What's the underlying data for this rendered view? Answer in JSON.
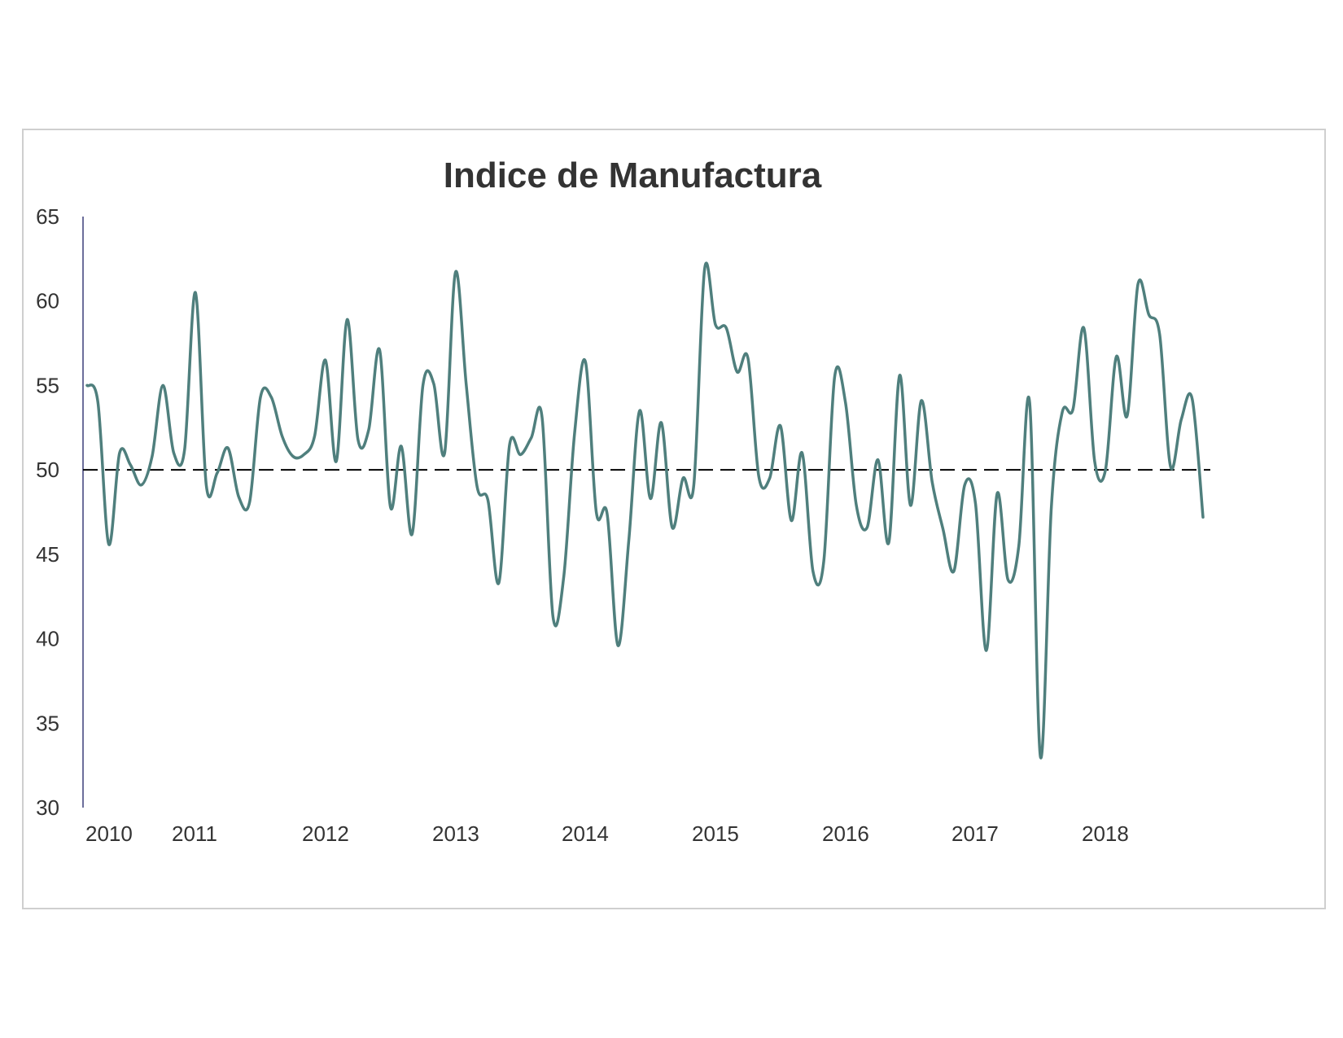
{
  "chart_data": {
    "type": "line",
    "title": "Indice de Manufactura",
    "xlabel": "",
    "ylabel": "",
    "ylim": [
      30,
      65
    ],
    "y_ticks": [
      30,
      35,
      40,
      45,
      50,
      55,
      60,
      65
    ],
    "x_tick_labels": [
      "2010",
      "2011",
      "2012",
      "2013",
      "2014",
      "2015",
      "2016",
      "2017",
      "2018"
    ],
    "reference_line": {
      "value": 50,
      "style": "dashed",
      "color": "#000000"
    },
    "line_color": "#4f7f7d",
    "grid": false,
    "legend": "none",
    "series": [
      {
        "values": [
          55.0,
          54.0,
          45.6,
          51.0,
          50.3,
          49.1,
          50.8,
          55.0,
          51.0,
          51.2,
          60.5,
          49.1,
          49.8,
          51.3,
          48.4,
          48.1,
          54.3,
          54.3,
          52.0,
          50.8,
          50.9,
          52.0,
          56.5,
          50.5,
          58.9,
          51.8,
          52.4,
          57.1,
          47.8,
          51.4,
          46.2,
          55.0,
          55.1,
          51.0,
          61.7,
          55.0,
          49.0,
          48.2,
          43.3,
          51.5,
          50.9,
          51.9,
          53.1,
          41.3,
          43.7,
          52.2,
          56.4,
          47.5,
          47.4,
          39.6,
          45.8,
          53.5,
          48.3,
          52.8,
          46.6,
          49.5,
          49.1,
          61.9,
          58.6,
          58.4,
          55.8,
          56.6,
          49.6,
          49.5,
          52.6,
          47.0,
          51.0,
          44.0,
          44.6,
          55.5,
          54.0,
          47.9,
          46.6,
          50.6,
          45.7,
          55.6,
          47.9,
          54.1,
          49.3,
          46.5,
          44.0,
          49.1,
          48.0,
          39.3,
          48.6,
          43.5,
          45.5,
          54.0,
          33.0,
          47.8,
          53.4,
          53.6,
          58.4,
          50.5,
          50.0,
          56.7,
          53.2,
          61.0,
          59.2,
          58.0,
          50.2,
          53.0,
          54.2,
          47.2
        ]
      }
    ]
  }
}
